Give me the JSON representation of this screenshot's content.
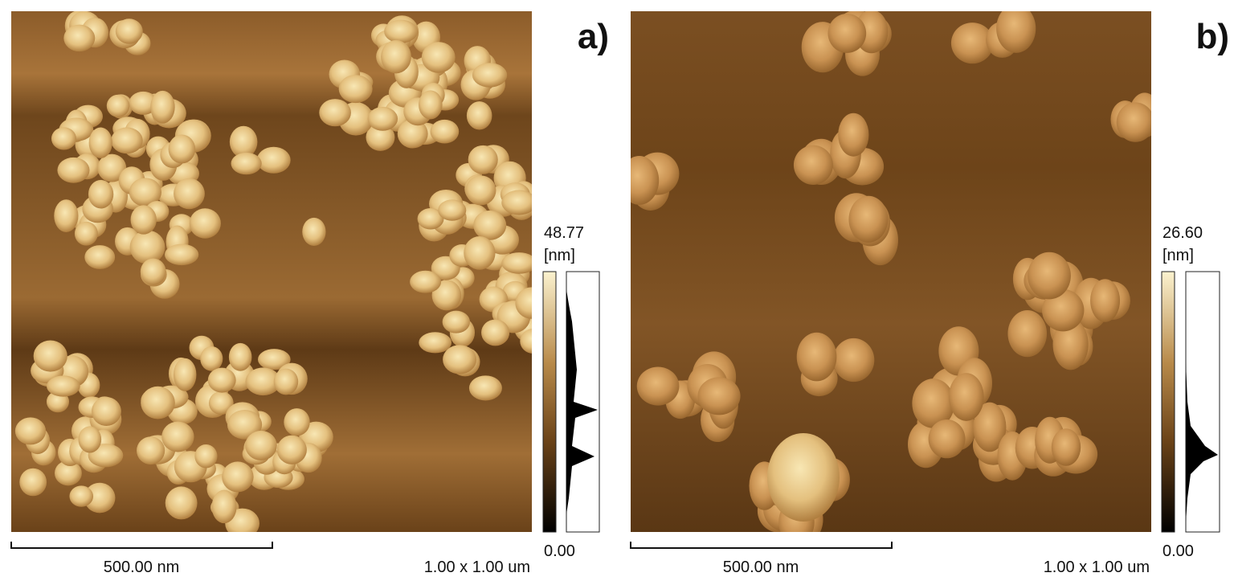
{
  "panels": [
    {
      "label": "a)",
      "max": "48.77",
      "unit": "[nm]",
      "min": "0.00",
      "scale_bar": "500.00 nm",
      "scan_size": "1.00 x 1.00 um"
    },
    {
      "label": "b)",
      "max": "26.60",
      "unit": "[nm]",
      "min": "0.00",
      "scale_bar": "500.00 nm",
      "scan_size": "1.00 x 1.00 um"
    }
  ]
}
